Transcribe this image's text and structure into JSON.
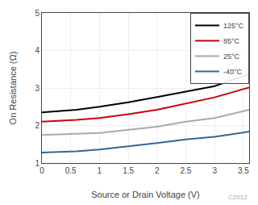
{
  "chart_data": {
    "type": "line",
    "xlabel": "Source or Drain Voltage (V)",
    "ylabel": "On Resistance (Ω)",
    "x": [
      0,
      0.3,
      0.6,
      1.0,
      1.5,
      2.0,
      2.5,
      3.0,
      3.5,
      3.6
    ],
    "series": [
      {
        "name": "125°C",
        "color": "#000000",
        "values": [
          2.35,
          2.38,
          2.42,
          2.5,
          2.62,
          2.76,
          2.91,
          3.05,
          3.32,
          3.38
        ]
      },
      {
        "name": "85°C",
        "color": "#cc0000",
        "values": [
          2.1,
          2.12,
          2.15,
          2.2,
          2.3,
          2.42,
          2.58,
          2.75,
          2.97,
          3.01
        ]
      },
      {
        "name": "25°C",
        "color": "#aaaaaa",
        "values": [
          1.75,
          1.76,
          1.78,
          1.8,
          1.88,
          1.97,
          2.1,
          2.2,
          2.38,
          2.42
        ]
      },
      {
        "name": "-40°C",
        "color": "#336699",
        "values": [
          1.28,
          1.29,
          1.31,
          1.36,
          1.44,
          1.53,
          1.63,
          1.7,
          1.81,
          1.84
        ]
      }
    ],
    "xlim": [
      0,
      3.6
    ],
    "ylim": [
      1,
      5
    ],
    "xticks": [
      0,
      0.5,
      1.0,
      1.5,
      2.0,
      2.5,
      3.0,
      3.5
    ],
    "yticks": [
      1,
      2,
      3,
      4,
      5
    ],
    "grid": true,
    "legend": "upper right",
    "annotations": [
      "C2012"
    ]
  }
}
